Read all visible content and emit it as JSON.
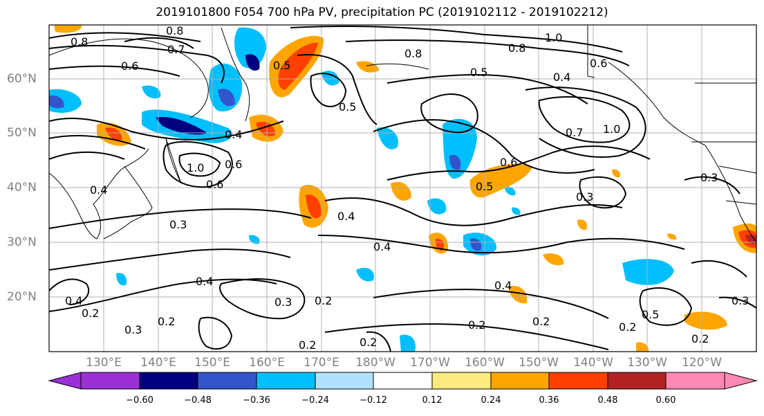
{
  "title": "2019101800 F054 700 hPa PV, precipitation PC (2019102112 - 2019102212)",
  "lat_labels": [
    "60°N",
    "50°N",
    "40°N",
    "30°N",
    "20°N"
  ],
  "lon_labels": [
    "130°E",
    "140°E",
    "150°E",
    "160°E",
    "170°E",
    "180°W",
    "170°W",
    "160°W",
    "150°W",
    "140°W",
    "130°W",
    "120°W"
  ],
  "colorbar": {
    "ticks": [
      "−0.60",
      "−0.48",
      "−0.36",
      "−0.24",
      "−0.12",
      "0.12",
      "0.24",
      "0.36",
      "0.48",
      "0.60"
    ],
    "colors": [
      "#9b30d6",
      "#000080",
      "#3355cc",
      "#00bfff",
      "#b0e2ff",
      "#ffffff",
      "#ffea80",
      "#ffa500",
      "#ff4000",
      "#b22222",
      "#ff88b4"
    ]
  },
  "contour_labels": [
    "0.8",
    "0.7",
    "0.6",
    "0.5",
    "0.5",
    "0.8",
    "1.0",
    "0.8",
    "0.6",
    "0.4",
    "0.5",
    "0.8",
    "0.4",
    "0.6",
    "1.0",
    "0.6",
    "0.4",
    "0.3",
    "0.4",
    "0.4",
    "0.6",
    "0.5",
    "0.7",
    "1.0",
    "0.3",
    "0.3",
    "0.4",
    "0.2",
    "0.3",
    "0.2",
    "0.3",
    "0.2",
    "0.2",
    "0.2",
    "0.2",
    "0.4",
    "0.2",
    "0.5",
    "0.2",
    "0.3",
    "0.4",
    "0.2"
  ]
}
